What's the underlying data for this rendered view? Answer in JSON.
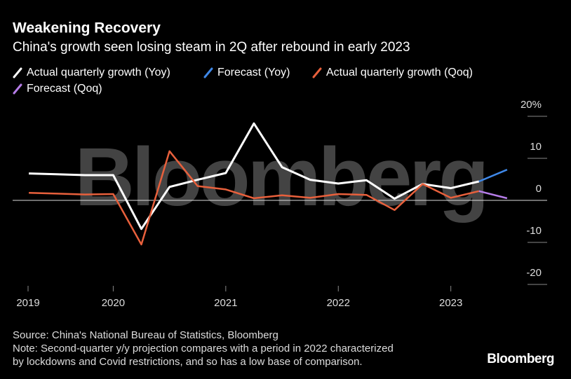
{
  "chart_data": {
    "type": "line",
    "title": "Weakening Recovery",
    "subtitle": "China's growth seen losing steam in 2Q after rebound in early 2023",
    "watermark": "Bloomberg",
    "source": "Source: China's National Bureau of Statistics, Bloomberg",
    "note": [
      "Note: Second-quarter y/y projection compares with a period in 2022 characterized",
      "by lockdowns and Covid restrictions, and so has a low base of comparison."
    ],
    "logo": "Bloomberg",
    "x": [
      2019.25,
      2019.5,
      2019.75,
      2020.0,
      2020.25,
      2020.5,
      2020.75,
      2021.0,
      2021.25,
      2021.5,
      2021.75,
      2022.0,
      2022.25,
      2022.5,
      2022.75,
      2023.0,
      2023.25,
      2023.5
    ],
    "series": [
      {
        "name": "Actual quarterly growth (Yoy)",
        "color": "#ffffff",
        "values": [
          6.4,
          6.2,
          6.0,
          6.0,
          -6.8,
          3.2,
          4.9,
          6.5,
          18.3,
          7.9,
          4.9,
          4.0,
          4.8,
          0.4,
          3.9,
          2.9,
          4.5,
          null
        ]
      },
      {
        "name": "Forecast (Yoy)",
        "color": "#3f88e8",
        "values": [
          null,
          null,
          null,
          null,
          null,
          null,
          null,
          null,
          null,
          null,
          null,
          null,
          null,
          null,
          null,
          null,
          4.5,
          7.3
        ]
      },
      {
        "name": "Actual quarterly growth (Qoq)",
        "color": "#e8603c",
        "values": [
          1.8,
          1.6,
          1.4,
          1.5,
          -10.5,
          11.7,
          3.4,
          2.6,
          0.5,
          1.2,
          0.6,
          1.5,
          1.3,
          -2.3,
          3.9,
          0.6,
          2.2,
          null
        ]
      },
      {
        "name": "Forecast (Qoq)",
        "color": "#b57de8",
        "values": [
          null,
          null,
          null,
          null,
          null,
          null,
          null,
          null,
          null,
          null,
          null,
          null,
          null,
          null,
          null,
          null,
          2.2,
          0.5
        ]
      }
    ],
    "xlim": [
      2019,
      2023.75
    ],
    "xticks": [
      2019,
      2020,
      2021,
      2022,
      2023
    ],
    "ylim": [
      -20,
      20
    ],
    "yticks": [
      -20,
      -10,
      0,
      10,
      {
        "value": 20,
        "label": "20%"
      }
    ]
  }
}
